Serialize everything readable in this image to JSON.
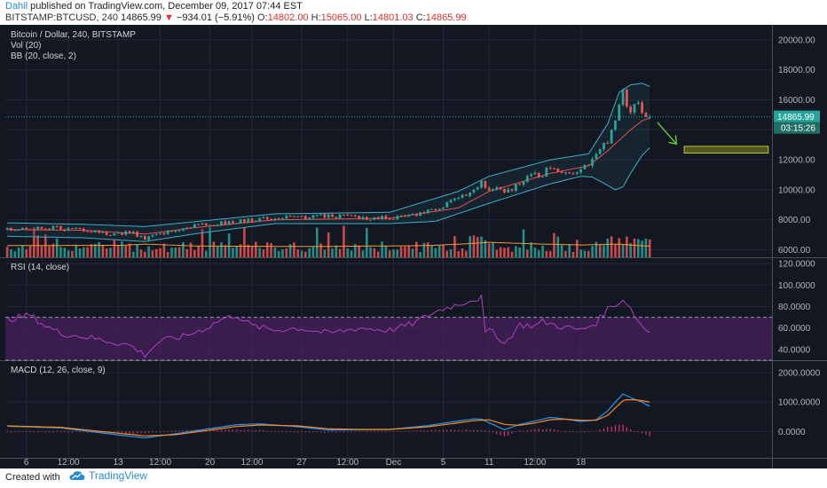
{
  "header": {
    "username": "Dahil",
    "published_text": "published on TradingView.com, December 09, 2017 07:44 EST",
    "symbol": "BITSTAMP:BTCUSD, 240",
    "last_price": "14865.99",
    "change": "−934.01 (−5.91%)",
    "open_label": "O:",
    "open": "14802.00",
    "high_label": "H:",
    "high": "15065.00",
    "low_label": "L:",
    "low": "14801.03",
    "close_label": "C:",
    "close": "14865.99"
  },
  "footer": {
    "created_with": "Created with",
    "brand": "TradingView"
  },
  "colors": {
    "background": "#131722",
    "up": "#26a69a",
    "down": "#ef5350",
    "bb_band": "#3bb0c9",
    "bb_basis": "#e05252",
    "rsi_line": "#b040c0",
    "rsi_fill": "#4a2160",
    "macd_line": "#2196f3",
    "signal_line": "#ff8a1c",
    "histogram": "#e0306a",
    "volume_ma": "#f29a38",
    "annotation": "#b0c836"
  },
  "chart_data": [
    {
      "type": "candlestick",
      "title": "Bitcoin / Dollar, 240, BITSTAMP",
      "indicators": [
        "Vol (20)",
        "BB (20, close, 2)"
      ],
      "ylim": [
        5500,
        21000
      ],
      "yticks": [
        "6000.00",
        "8000.00",
        "10000.00",
        "12000.00",
        "14000.00",
        "16000.00",
        "18000.00",
        "20000.00"
      ],
      "last_price_label": "14865.99",
      "countdown_label": "03:15:26",
      "x_ticks": [
        "6",
        "12:00",
        "13",
        "12:00",
        "20",
        "12:00",
        "27",
        "12:00",
        "Dec",
        "5",
        "11",
        "12:00",
        "18"
      ],
      "price_path": [
        [
          0,
          7350
        ],
        [
          10,
          7500
        ],
        [
          20,
          7300
        ],
        [
          28,
          7050
        ],
        [
          32,
          7200
        ],
        [
          36,
          6750
        ],
        [
          40,
          7050
        ],
        [
          46,
          7500
        ],
        [
          52,
          7700
        ],
        [
          58,
          7800
        ],
        [
          64,
          8000
        ],
        [
          70,
          8150
        ],
        [
          76,
          8100
        ],
        [
          82,
          8300
        ],
        [
          88,
          8200
        ],
        [
          96,
          8100
        ],
        [
          104,
          8200
        ],
        [
          110,
          8550
        ],
        [
          114,
          8900
        ],
        [
          118,
          9400
        ],
        [
          121,
          9900
        ],
        [
          124,
          10500
        ],
        [
          126,
          9900
        ],
        [
          128,
          10300
        ],
        [
          130,
          9700
        ],
        [
          134,
          10500
        ],
        [
          137,
          10900
        ],
        [
          140,
          11050
        ],
        [
          142,
          11600
        ],
        [
          145,
          11300
        ],
        [
          148,
          11200
        ],
        [
          150,
          11450
        ],
        [
          152,
          11700
        ],
        [
          154,
          12200
        ],
        [
          157,
          13300
        ],
        [
          159,
          14500
        ],
        [
          160,
          15800
        ],
        [
          161,
          16400
        ],
        [
          162,
          15700
        ],
        [
          163,
          15300
        ],
        [
          164,
          15900
        ],
        [
          165,
          15600
        ],
        [
          166,
          15400
        ],
        [
          167,
          15000
        ],
        [
          168,
          14866
        ]
      ],
      "bb_upper_path": [
        [
          0,
          7800
        ],
        [
          20,
          7700
        ],
        [
          36,
          7550
        ],
        [
          50,
          7900
        ],
        [
          70,
          8400
        ],
        [
          100,
          8500
        ],
        [
          118,
          9900
        ],
        [
          126,
          10900
        ],
        [
          142,
          12000
        ],
        [
          152,
          12400
        ],
        [
          157,
          14400
        ],
        [
          160,
          16500
        ],
        [
          163,
          17000
        ],
        [
          166,
          17100
        ],
        [
          168,
          16900
        ]
      ],
      "bb_lower_path": [
        [
          0,
          6900
        ],
        [
          20,
          6800
        ],
        [
          36,
          6550
        ],
        [
          50,
          7100
        ],
        [
          70,
          7750
        ],
        [
          100,
          7750
        ],
        [
          112,
          7900
        ],
        [
          126,
          9100
        ],
        [
          142,
          10400
        ],
        [
          150,
          10900
        ],
        [
          153,
          10850
        ],
        [
          157,
          10300
        ],
        [
          159,
          10000
        ],
        [
          161,
          10200
        ],
        [
          163,
          11100
        ],
        [
          166,
          12300
        ],
        [
          168,
          12800
        ]
      ],
      "bb_basis_path": [
        [
          0,
          7350
        ],
        [
          20,
          7300
        ],
        [
          36,
          7050
        ],
        [
          50,
          7500
        ],
        [
          70,
          8000
        ],
        [
          100,
          8100
        ],
        [
          118,
          8800
        ],
        [
          126,
          9900
        ],
        [
          142,
          11100
        ],
        [
          152,
          11600
        ],
        [
          157,
          12600
        ],
        [
          160,
          13300
        ],
        [
          163,
          14000
        ],
        [
          166,
          14600
        ],
        [
          168,
          14800
        ]
      ],
      "volume_ma_path": [
        [
          0,
          6280
        ],
        [
          30,
          6300
        ],
        [
          36,
          6380
        ],
        [
          50,
          6250
        ],
        [
          80,
          6220
        ],
        [
          110,
          6280
        ],
        [
          120,
          6400
        ],
        [
          126,
          6500
        ],
        [
          140,
          6380
        ],
        [
          150,
          6320
        ],
        [
          160,
          6380
        ],
        [
          165,
          6280
        ],
        [
          168,
          6250
        ]
      ],
      "annotation": {
        "type": "target-zone",
        "price_low": 12450,
        "price_high": 12900,
        "from_bar": 177,
        "to_bar": 199
      }
    },
    {
      "type": "line",
      "title": "RSI (14, close)",
      "ylim": [
        30,
        125
      ],
      "yticks": [
        "40.0000",
        "60.0000",
        "80.0000",
        "100.0000",
        "120.0000"
      ],
      "band": [
        30,
        70
      ],
      "series": [
        {
          "values": [
            [
              0,
              68
            ],
            [
              6,
              72
            ],
            [
              10,
              62
            ],
            [
              14,
              55
            ],
            [
              20,
              52
            ],
            [
              26,
              48
            ],
            [
              32,
              44
            ],
            [
              36,
              35
            ],
            [
              40,
              48
            ],
            [
              46,
              52
            ],
            [
              52,
              60
            ],
            [
              56,
              68
            ],
            [
              60,
              72
            ],
            [
              64,
              62
            ],
            [
              70,
              58
            ],
            [
              76,
              60
            ],
            [
              84,
              55
            ],
            [
              92,
              60
            ],
            [
              100,
              58
            ],
            [
              106,
              64
            ],
            [
              110,
              72
            ],
            [
              114,
              78
            ],
            [
              118,
              82
            ],
            [
              121,
              86
            ],
            [
              124,
              88
            ],
            [
              125,
              55
            ],
            [
              127,
              58
            ],
            [
              130,
              45
            ],
            [
              134,
              63
            ],
            [
              138,
              62
            ],
            [
              140,
              66
            ],
            [
              144,
              62
            ],
            [
              150,
              58
            ],
            [
              154,
              65
            ],
            [
              157,
              78
            ],
            [
              159,
              82
            ],
            [
              161,
              86
            ],
            [
              162,
              84
            ],
            [
              164,
              72
            ],
            [
              166,
              62
            ],
            [
              168,
              56
            ]
          ]
        }
      ]
    },
    {
      "type": "line",
      "title": "MACD (12, 26, close, 9)",
      "ylim": [
        -900,
        2400
      ],
      "yticks": [
        "0.0000",
        "1000.0000",
        "2000.0000"
      ],
      "series": [
        {
          "values": [
            [
              0,
              180
            ],
            [
              14,
              120
            ],
            [
              26,
              -70
            ],
            [
              36,
              -220
            ],
            [
              44,
              -80
            ],
            [
              52,
              80
            ],
            [
              60,
              230
            ],
            [
              66,
              260
            ],
            [
              76,
              160
            ],
            [
              84,
              50
            ],
            [
              92,
              60
            ],
            [
              100,
              70
            ],
            [
              110,
              200
            ],
            [
              116,
              320
            ],
            [
              122,
              430
            ],
            [
              124,
              420
            ],
            [
              130,
              60
            ],
            [
              134,
              240
            ],
            [
              138,
              360
            ],
            [
              142,
              480
            ],
            [
              146,
              420
            ],
            [
              150,
              340
            ],
            [
              154,
              400
            ],
            [
              157,
              700
            ],
            [
              159,
              1000
            ],
            [
              161,
              1280
            ],
            [
              162,
              1220
            ],
            [
              164,
              1100
            ],
            [
              166,
              1000
            ],
            [
              168,
              850
            ]
          ]
        },
        {
          "values": [
            [
              0,
              190
            ],
            [
              14,
              140
            ],
            [
              26,
              -20
            ],
            [
              36,
              -150
            ],
            [
              44,
              -110
            ],
            [
              52,
              30
            ],
            [
              60,
              170
            ],
            [
              66,
              220
            ],
            [
              76,
              190
            ],
            [
              84,
              90
            ],
            [
              92,
              70
            ],
            [
              100,
              70
            ],
            [
              110,
              160
            ],
            [
              116,
              260
            ],
            [
              122,
              370
            ],
            [
              126,
              400
            ],
            [
              130,
              240
            ],
            [
              134,
              210
            ],
            [
              138,
              290
            ],
            [
              142,
              400
            ],
            [
              146,
              420
            ],
            [
              150,
              380
            ],
            [
              154,
              380
            ],
            [
              157,
              550
            ],
            [
              159,
              800
            ],
            [
              161,
              1050
            ],
            [
              162,
              1080
            ],
            [
              164,
              1080
            ],
            [
              166,
              1050
            ],
            [
              168,
              1000
            ]
          ]
        }
      ],
      "histogram": [
        [
          0,
          -20
        ],
        [
          14,
          -20
        ],
        [
          26,
          -50
        ],
        [
          36,
          -70
        ],
        [
          44,
          30
        ],
        [
          52,
          50
        ],
        [
          60,
          60
        ],
        [
          66,
          40
        ],
        [
          76,
          -30
        ],
        [
          84,
          -40
        ],
        [
          92,
          -10
        ],
        [
          100,
          0
        ],
        [
          110,
          40
        ],
        [
          116,
          60
        ],
        [
          122,
          60
        ],
        [
          126,
          20
        ],
        [
          130,
          -180
        ],
        [
          134,
          30
        ],
        [
          138,
          70
        ],
        [
          142,
          80
        ],
        [
          146,
          0
        ],
        [
          150,
          -40
        ],
        [
          154,
          20
        ],
        [
          157,
          150
        ],
        [
          159,
          200
        ],
        [
          161,
          230
        ],
        [
          162,
          140
        ],
        [
          164,
          20
        ],
        [
          166,
          -50
        ],
        [
          168,
          -150
        ]
      ]
    }
  ]
}
